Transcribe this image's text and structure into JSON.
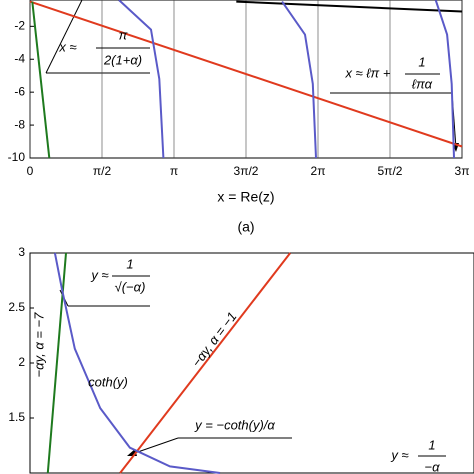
{
  "chart_data": [
    {
      "type": "line",
      "xlabel": "x = Re(z)",
      "caption": "(a)",
      "xlim": [
        0,
        9.42478
      ],
      "ylim": [
        -10,
        -0.4
      ],
      "xticks": [
        0,
        {
          "value": 1.5708,
          "label": "π/2"
        },
        {
          "value": 3.14159,
          "label": "π"
        },
        {
          "value": 4.71239,
          "label": "3π/2"
        },
        {
          "value": 6.28319,
          "label": "2π"
        },
        {
          "value": 7.85398,
          "label": "5π/2"
        },
        {
          "value": 9.42478,
          "label": "3π"
        }
      ],
      "yticks": [
        -2,
        -4,
        -6,
        -8,
        -10
      ],
      "grid": true,
      "series": [
        {
          "color": "#e03a1e",
          "x": [
            0,
            9.42478
          ],
          "values": [
            -0.5,
            -9.3
          ]
        },
        {
          "color": "#1e7a1e",
          "x": [
            0.05,
            0.42
          ],
          "values": [
            -0.5,
            -10
          ]
        },
        {
          "color": "#000000",
          "x": [
            4.5,
            9.42478
          ],
          "values": [
            -0.5,
            -1.1
          ]
        },
        {
          "color": "#5a5ac8",
          "x": [
            1.94,
            2.64,
            2.82,
            2.91,
            null,
            5.5,
            6.0,
            6.17,
            6.24,
            null,
            8.85,
            9.1,
            9.2,
            9.25
          ],
          "values": [
            -0.4,
            -2.2,
            -5.2,
            -10,
            null,
            -0.5,
            -2.5,
            -5.5,
            -10,
            null,
            -0.4,
            -2.5,
            -5.5,
            -10
          ]
        }
      ],
      "annotations": [
        {
          "text": "x ≈",
          "numerator": "π",
          "denominator": "2(1+α)"
        },
        {
          "text": "x ≈ ℓπ +",
          "numerator": "1",
          "denominator": "ℓπα"
        }
      ]
    },
    {
      "type": "line",
      "xlim": [
        0,
        1
      ],
      "ylim": [
        1,
        3
      ],
      "yticks": [
        1.5,
        2,
        2.5,
        3
      ],
      "series": [
        {
          "color": "#1e7a1e",
          "x": [
            0.04,
            0.081
          ],
          "values": [
            1,
            3
          ]
        },
        {
          "color": "#e03a1e",
          "x": [
            0.203,
            0.586
          ],
          "values": [
            1,
            3
          ]
        },
        {
          "color": "#5a5ac8",
          "x": [
            0.056,
            0.072,
            0.101,
            0.158,
            0.225,
            0.315,
            0.428
          ],
          "values": [
            3,
            2.67,
            2.13,
            1.59,
            1.23,
            1.06,
            1.0
          ]
        }
      ],
      "annotations": [
        {
          "text": "y ≈",
          "numerator": "1",
          "denominator": "√(−α)"
        },
        {
          "text": "−αy, α = −7"
        },
        {
          "text": "−αy, α = −1"
        },
        {
          "text": "coth(y)"
        },
        {
          "text": "y = −coth(y)/α"
        },
        {
          "text": "y ≈",
          "numerator": "1",
          "denominator": "−α"
        }
      ]
    }
  ]
}
